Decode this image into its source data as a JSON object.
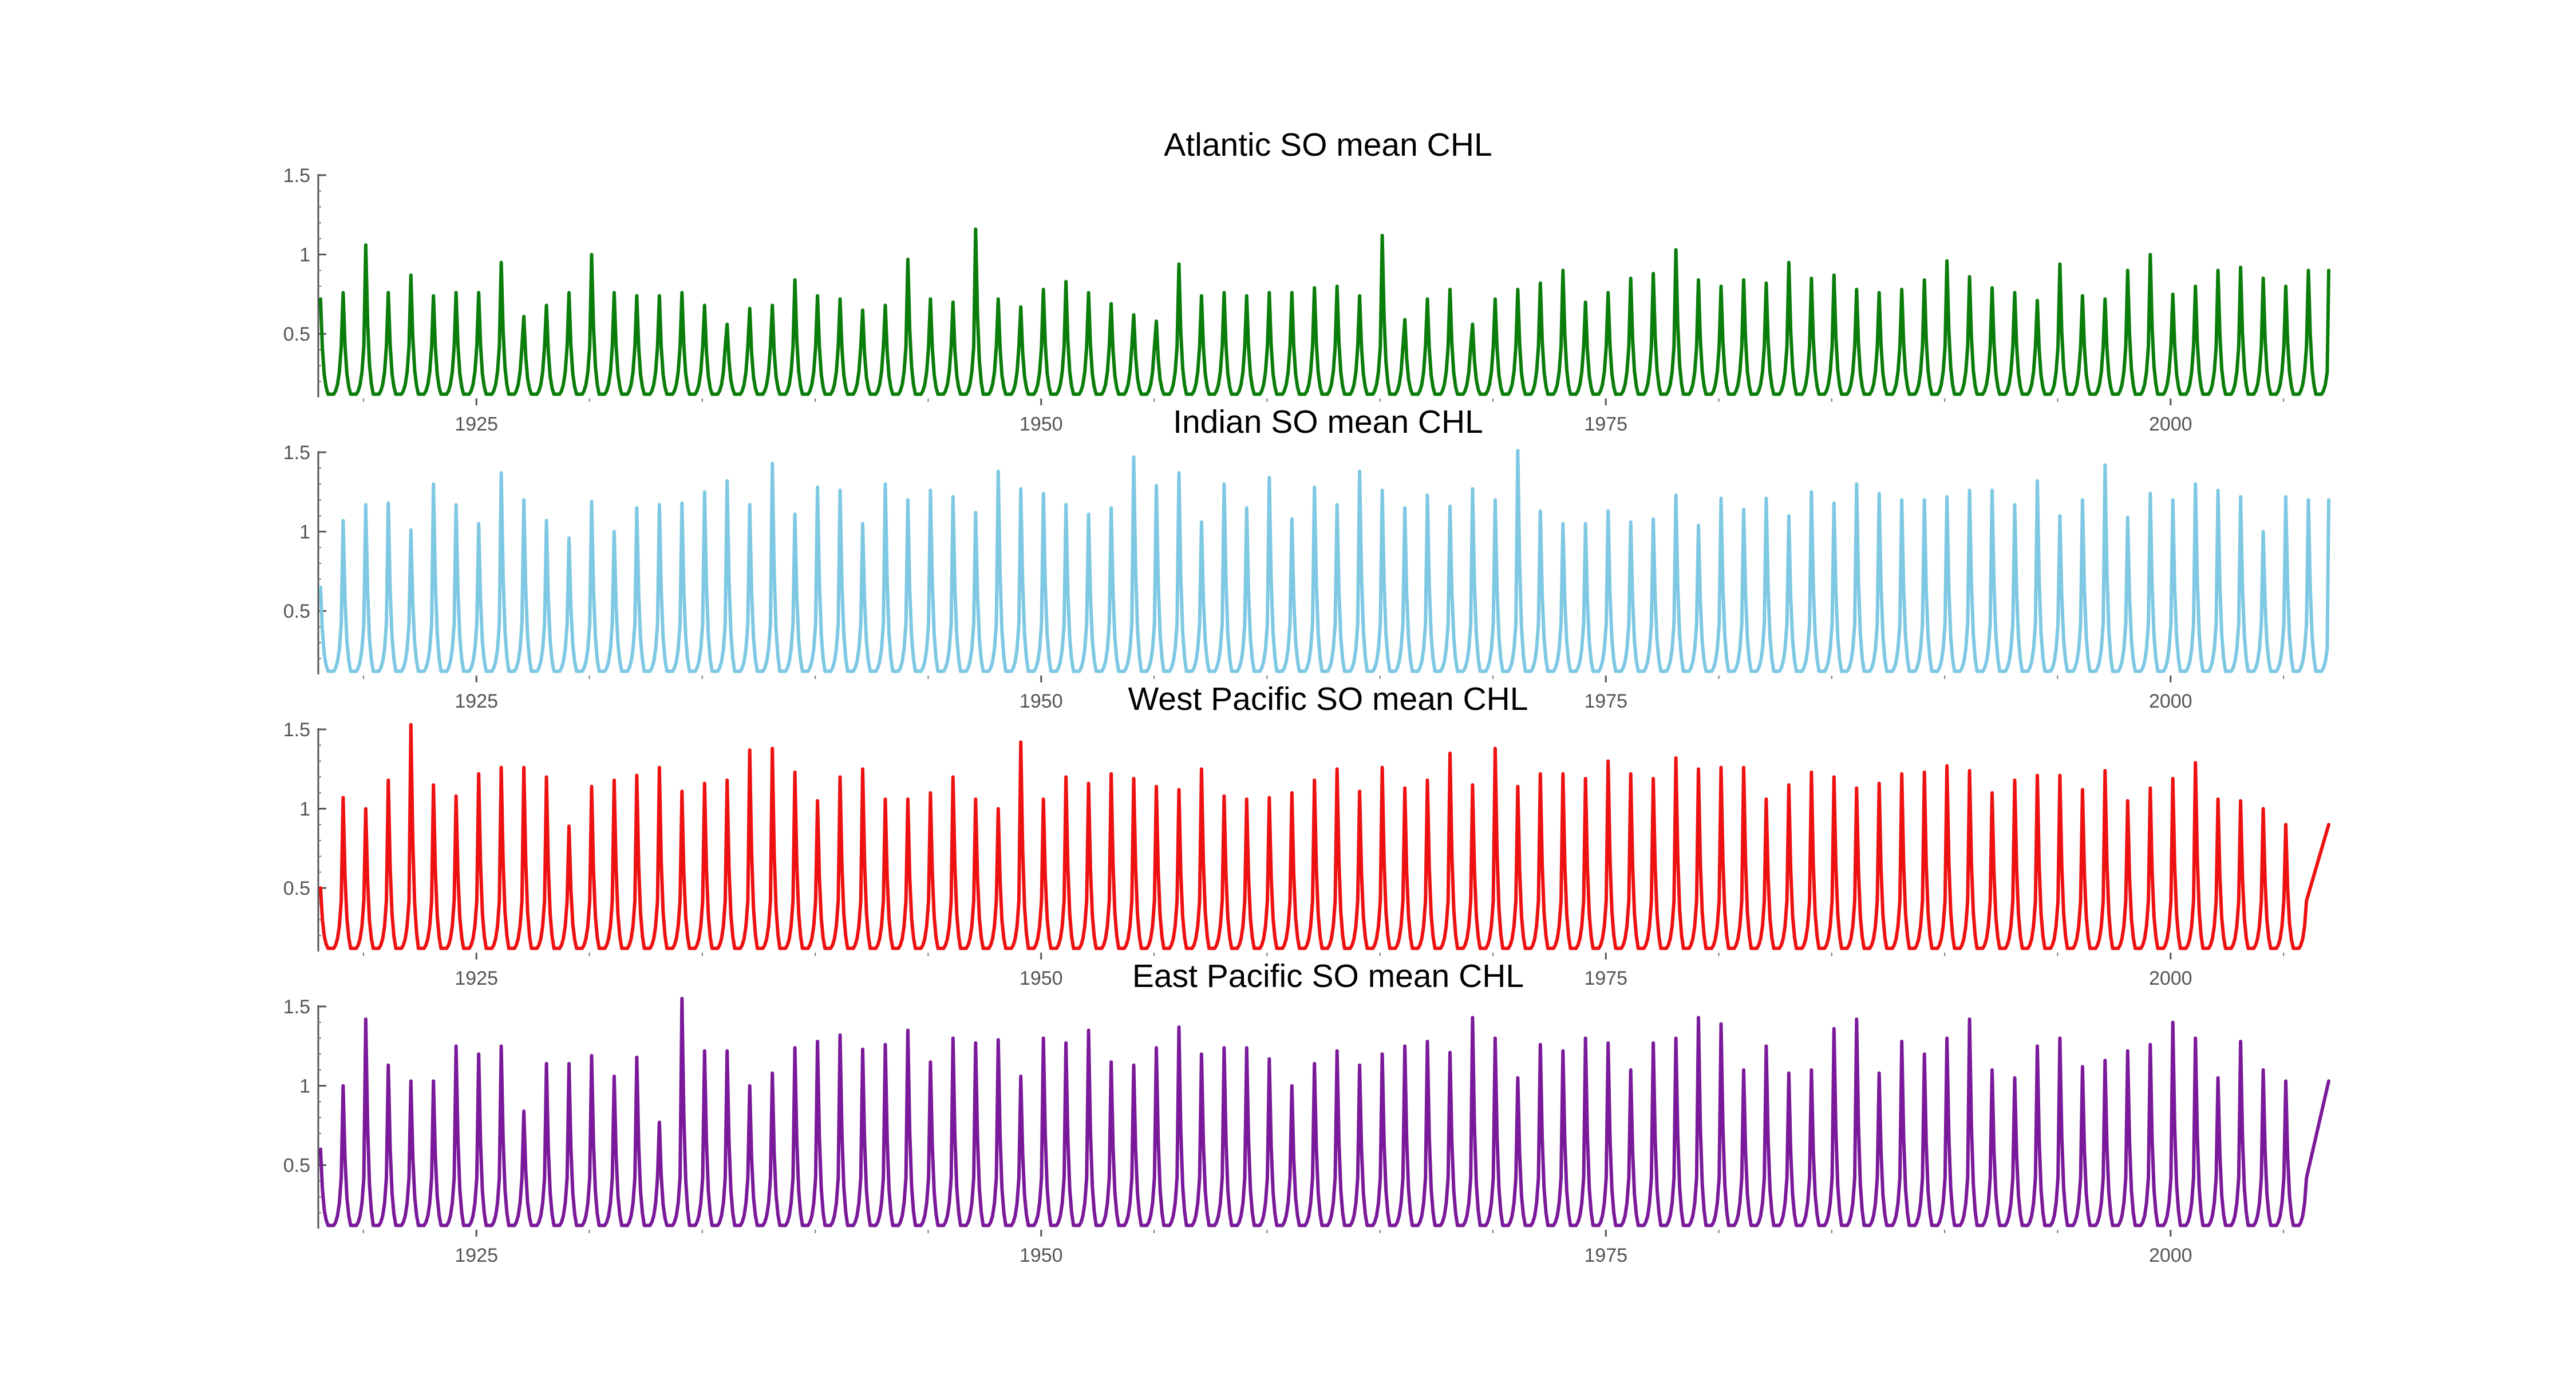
{
  "chart_data": [
    {
      "type": "line",
      "title": "Atlantic SO mean CHL",
      "xlim": [
        1918.0,
        2007.0
      ],
      "ylim": [
        0.1,
        1.5
      ],
      "x_ticks": [
        1925,
        1950,
        1975,
        2000
      ],
      "y_ticks": [
        0.5,
        1,
        1.5
      ],
      "y_tick_labels": [
        "0.5",
        "1",
        "1.5"
      ],
      "color": "#0a7d0a",
      "series": [
        {
          "x_start": 1918.0,
          "x_step": 1,
          "peak_month": 0.1,
          "min": 0.12,
          "tail": 0.9,
          "peaks": [
            0.72,
            0.76,
            1.06,
            0.76,
            0.87,
            0.74,
            0.76,
            0.76,
            0.95,
            0.61,
            0.68,
            0.76,
            1.0,
            0.76,
            0.74,
            0.74,
            0.76,
            0.68,
            0.56,
            0.66,
            0.68,
            0.84,
            0.74,
            0.72,
            0.65,
            0.68,
            0.97,
            0.72,
            0.7,
            1.16,
            0.72,
            0.67,
            0.78,
            0.83,
            0.76,
            0.69,
            0.62,
            0.58,
            0.94,
            0.74,
            0.76,
            0.74,
            0.76,
            0.76,
            0.79,
            0.8,
            0.74,
            1.12,
            0.59,
            0.72,
            0.78,
            0.56,
            0.72,
            0.78,
            0.82,
            0.9,
            0.7,
            0.76,
            0.85,
            0.88,
            1.03,
            0.84,
            0.8,
            0.84,
            0.82,
            0.95,
            0.85,
            0.87,
            0.78,
            0.76,
            0.78,
            0.84,
            0.96,
            0.86,
            0.79,
            0.76,
            0.71,
            0.94,
            0.74,
            0.72,
            0.9,
            1.0,
            0.75,
            0.8,
            0.9,
            0.92,
            0.85,
            0.8,
            0.9
          ]
        }
      ]
    },
    {
      "type": "line",
      "title": "Indian SO mean CHL",
      "xlim": [
        1918.0,
        2007.0
      ],
      "ylim": [
        0.1,
        1.5
      ],
      "x_ticks": [
        1925,
        1950,
        1975,
        2000
      ],
      "y_ticks": [
        0.5,
        1,
        1.5
      ],
      "y_tick_labels": [
        "0.5",
        "1",
        "1.5"
      ],
      "color": "#7ec8e3",
      "series": [
        {
          "x_start": 1918.0,
          "x_step": 1,
          "peak_month": 0.1,
          "min": 0.12,
          "tail": 1.2,
          "peaks": [
            0.65,
            1.07,
            1.17,
            1.18,
            1.01,
            1.3,
            1.17,
            1.05,
            1.37,
            1.2,
            1.07,
            0.96,
            1.19,
            1.0,
            1.15,
            1.17,
            1.18,
            1.25,
            1.32,
            1.17,
            1.43,
            1.11,
            1.28,
            1.26,
            1.05,
            1.3,
            1.2,
            1.26,
            1.22,
            1.12,
            1.38,
            1.27,
            1.24,
            1.17,
            1.11,
            1.15,
            1.47,
            1.29,
            1.37,
            1.06,
            1.3,
            1.15,
            1.34,
            1.08,
            1.28,
            1.17,
            1.38,
            1.26,
            1.15,
            1.23,
            1.16,
            1.27,
            1.2,
            1.51,
            1.13,
            1.05,
            1.05,
            1.13,
            1.06,
            1.08,
            1.23,
            1.04,
            1.21,
            1.14,
            1.21,
            1.1,
            1.25,
            1.18,
            1.3,
            1.24,
            1.2,
            1.2,
            1.22,
            1.26,
            1.26,
            1.17,
            1.32,
            1.1,
            1.2,
            1.42,
            1.09,
            1.24,
            1.2,
            1.3,
            1.26,
            1.22,
            1.0,
            1.22,
            1.2
          ]
        }
      ]
    },
    {
      "type": "line",
      "title": "West Pacific SO mean CHL",
      "xlim": [
        1918.0,
        2007.0
      ],
      "ylim": [
        0.1,
        1.5
      ],
      "x_ticks": [
        1925,
        1950,
        1975,
        2000
      ],
      "y_ticks": [
        0.5,
        1,
        1.5
      ],
      "y_tick_labels": [
        "0.5",
        "1",
        "1.5"
      ],
      "color": "#ee1111",
      "series": [
        {
          "x_start": 1918.0,
          "x_step": 1,
          "peak_month": 0.1,
          "min": 0.12,
          "tail": 0.9,
          "peaks": [
            0.5,
            1.07,
            1.0,
            1.18,
            1.53,
            1.15,
            1.08,
            1.22,
            1.26,
            1.26,
            1.2,
            0.89,
            1.14,
            1.18,
            1.21,
            1.26,
            1.11,
            1.16,
            1.18,
            1.37,
            1.38,
            1.23,
            1.05,
            1.2,
            1.25,
            1.06,
            1.06,
            1.1,
            1.2,
            1.06,
            1.0,
            1.42,
            1.06,
            1.2,
            1.16,
            1.22,
            1.19,
            1.14,
            1.12,
            1.25,
            1.08,
            1.06,
            1.07,
            1.1,
            1.18,
            1.25,
            1.11,
            1.26,
            1.13,
            1.18,
            1.35,
            1.15,
            1.38,
            1.14,
            1.22,
            1.22,
            1.19,
            1.3,
            1.22,
            1.19,
            1.32,
            1.25,
            1.26,
            1.26,
            1.06,
            1.15,
            1.23,
            1.2,
            1.13,
            1.16,
            1.22,
            1.23,
            1.27,
            1.24,
            1.1,
            1.18,
            1.21,
            1.21,
            1.12,
            1.24,
            1.05,
            1.13,
            1.19,
            1.29,
            1.06,
            1.05,
            1.0,
            0.9
          ]
        }
      ]
    },
    {
      "type": "line",
      "title": "East Pacific SO mean CHL",
      "xlim": [
        1918.0,
        2007.0
      ],
      "ylim": [
        0.1,
        1.5
      ],
      "x_ticks": [
        1925,
        1950,
        1975,
        2000
      ],
      "y_ticks": [
        0.5,
        1,
        1.5
      ],
      "y_tick_labels": [
        "0.5",
        "1",
        "1.5"
      ],
      "color": "#7a1a9a",
      "series": [
        {
          "x_start": 1918.0,
          "x_step": 1,
          "peak_month": 0.1,
          "min": 0.12,
          "tail": 1.03,
          "peaks": [
            0.6,
            1.0,
            1.42,
            1.13,
            1.03,
            1.03,
            1.25,
            1.2,
            1.25,
            0.84,
            1.14,
            1.14,
            1.19,
            1.06,
            1.18,
            0.77,
            1.55,
            1.22,
            1.22,
            1.0,
            1.08,
            1.24,
            1.28,
            1.32,
            1.23,
            1.26,
            1.35,
            1.15,
            1.3,
            1.27,
            1.29,
            1.06,
            1.3,
            1.27,
            1.35,
            1.15,
            1.13,
            1.24,
            1.37,
            1.2,
            1.24,
            1.24,
            1.17,
            1.0,
            1.14,
            1.22,
            1.13,
            1.2,
            1.25,
            1.28,
            1.21,
            1.43,
            1.3,
            1.05,
            1.26,
            1.22,
            1.3,
            1.27,
            1.1,
            1.27,
            1.3,
            1.43,
            1.39,
            1.1,
            1.25,
            1.08,
            1.1,
            1.36,
            1.42,
            1.08,
            1.28,
            1.2,
            1.3,
            1.42,
            1.1,
            1.05,
            1.25,
            1.3,
            1.12,
            1.16,
            1.22,
            1.26,
            1.4,
            1.3,
            1.05,
            1.28,
            1.1,
            1.03
          ]
        }
      ]
    }
  ]
}
